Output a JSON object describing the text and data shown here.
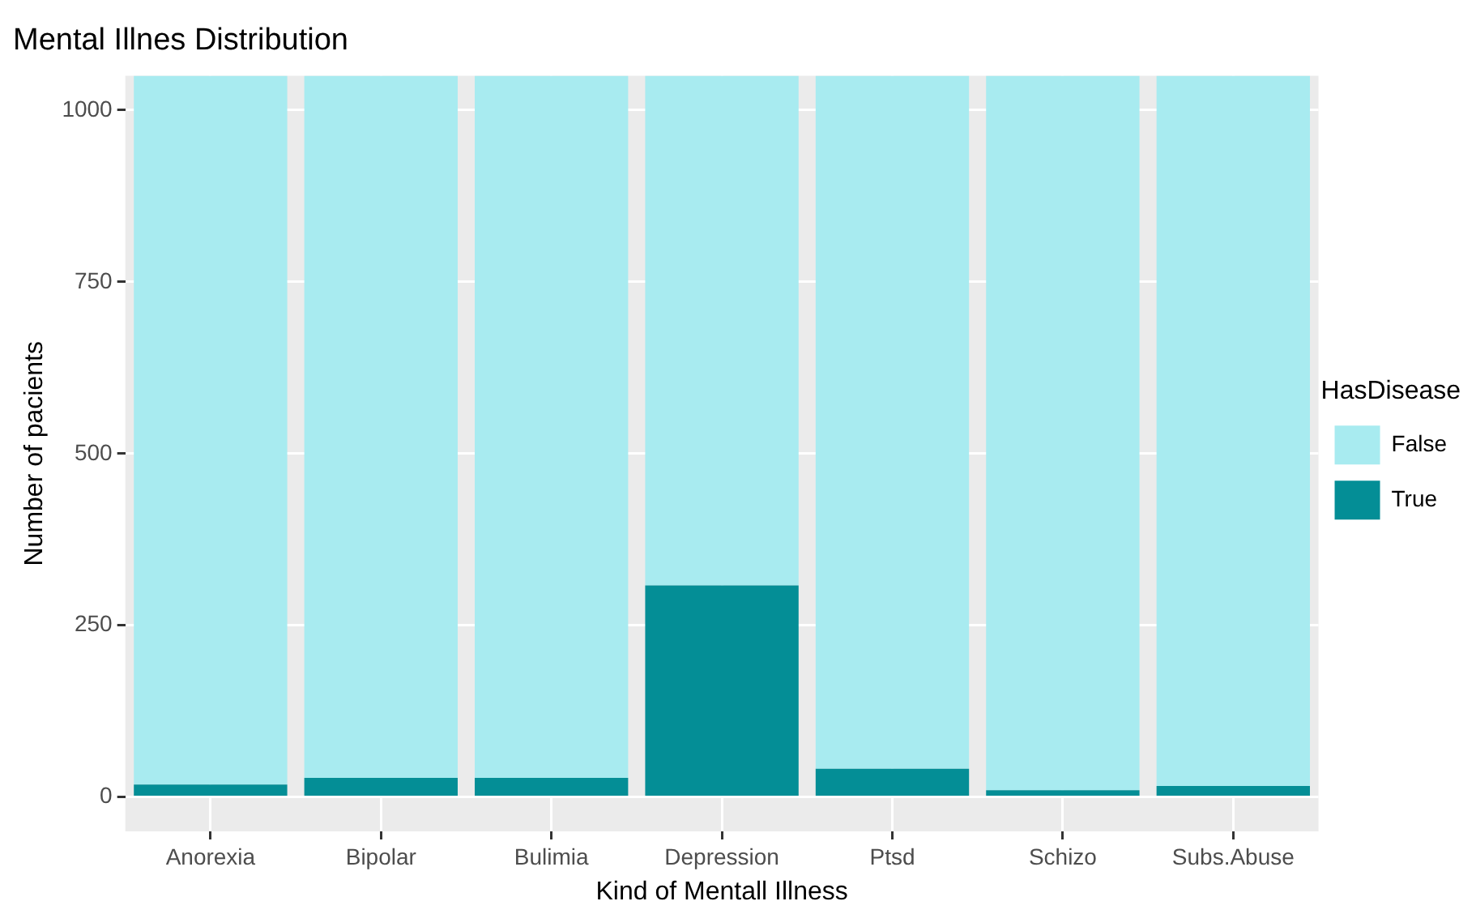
{
  "chart_data": {
    "type": "bar",
    "title": "Mental Illnes Distribution",
    "xlabel": "Kind of Mentall Illness",
    "ylabel": "Number of pacients",
    "legend_title": "HasDisease",
    "categories": [
      "Anorexia",
      "Bipolar",
      "Bulimia",
      "Depression",
      "Ptsd",
      "Schizo",
      "Subs.Abuse"
    ],
    "stacked": true,
    "series": [
      {
        "name": "True",
        "color": "#048e96",
        "values": [
          18,
          28,
          28,
          308,
          41,
          10,
          16
        ]
      },
      {
        "name": "False",
        "color": "#a8ebf0",
        "values": [
          1032,
          1022,
          1022,
          742,
          1009,
          1040,
          1034
        ]
      }
    ],
    "ylim": [
      -50,
      1050
    ],
    "yticks": [
      0,
      250,
      500,
      750,
      1000
    ],
    "grid": true,
    "legend": "right"
  }
}
